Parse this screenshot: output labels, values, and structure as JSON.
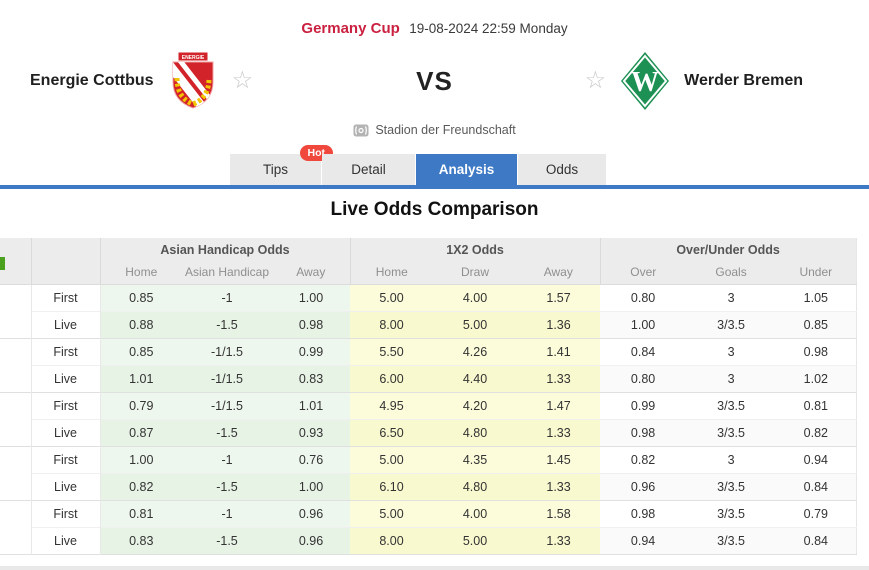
{
  "colors": {
    "accent-blue": "#3d79c5",
    "league-red": "#cb2140",
    "hot-red": "#f0483d",
    "werder-green": "#1d9053",
    "cottbus-red": "#d2232a",
    "laurel-yellow": "#f2c500"
  },
  "header": {
    "league": "Germany Cup",
    "datetime": "19-08-2024 22:59 Monday",
    "home_team": "Energie Cottbus",
    "away_team": "Werder Bremen",
    "vs_label": "VS",
    "venue": "Stadion der Freundschaft"
  },
  "tabs": [
    {
      "label": "Tips",
      "badge": "Hot",
      "active": false
    },
    {
      "label": "Detail",
      "badge": "",
      "active": false
    },
    {
      "label": "Analysis",
      "badge": "",
      "active": true
    },
    {
      "label": "Odds",
      "badge": "",
      "active": false
    }
  ],
  "section_title": "Live Odds Comparison",
  "odds_table": {
    "group_headers": [
      "Asian Handicap Odds",
      "1X2 Odds",
      "Over/Under Odds"
    ],
    "column_headers": [
      "Home",
      "Asian Handicap",
      "Away",
      "Home",
      "Draw",
      "Away",
      "Over",
      "Goals",
      "Under"
    ],
    "rows": [
      {
        "period": "First",
        "values": [
          "0.85",
          "-1",
          "1.00",
          "5.00",
          "4.00",
          "1.57",
          "0.80",
          "3",
          "1.05"
        ]
      },
      {
        "period": "Live",
        "values": [
          "0.88",
          "-1.5",
          "0.98",
          "8.00",
          "5.00",
          "1.36",
          "1.00",
          "3/3.5",
          "0.85"
        ]
      },
      {
        "period": "First",
        "values": [
          "0.85",
          "-1/1.5",
          "0.99",
          "5.50",
          "4.26",
          "1.41",
          "0.84",
          "3",
          "0.98"
        ]
      },
      {
        "period": "Live",
        "values": [
          "1.01",
          "-1/1.5",
          "0.83",
          "6.00",
          "4.40",
          "1.33",
          "0.80",
          "3",
          "1.02"
        ]
      },
      {
        "period": "First",
        "values": [
          "0.79",
          "-1/1.5",
          "1.01",
          "4.95",
          "4.20",
          "1.47",
          "0.99",
          "3/3.5",
          "0.81"
        ]
      },
      {
        "period": "Live",
        "values": [
          "0.87",
          "-1.5",
          "0.93",
          "6.50",
          "4.80",
          "1.33",
          "0.98",
          "3/3.5",
          "0.82"
        ]
      },
      {
        "period": "First",
        "values": [
          "1.00",
          "-1",
          "0.76",
          "5.00",
          "4.35",
          "1.45",
          "0.82",
          "3",
          "0.94"
        ]
      },
      {
        "period": "Live",
        "values": [
          "0.82",
          "-1.5",
          "1.00",
          "6.10",
          "4.80",
          "1.33",
          "0.96",
          "3/3.5",
          "0.84"
        ]
      },
      {
        "period": "First",
        "values": [
          "0.81",
          "-1",
          "0.96",
          "5.00",
          "4.00",
          "1.58",
          "0.98",
          "3/3.5",
          "0.79"
        ]
      },
      {
        "period": "Live",
        "values": [
          "0.83",
          "-1.5",
          "0.96",
          "8.00",
          "5.00",
          "1.33",
          "0.94",
          "3/3.5",
          "0.84"
        ]
      }
    ]
  }
}
